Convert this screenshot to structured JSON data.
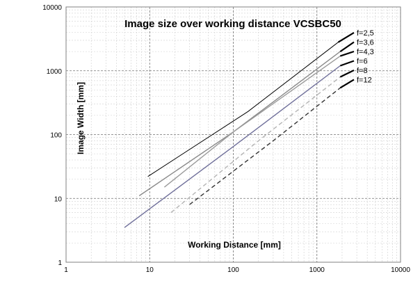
{
  "chart_data": {
    "type": "line",
    "title": "Image size over working distance VCSBC50",
    "xlabel": "Working Distance [mm]",
    "ylabel": "Image Width [mm]",
    "x_scale": "log",
    "y_scale": "log",
    "xlim": [
      1,
      10000
    ],
    "ylim": [
      1,
      10000
    ],
    "x_ticks": [
      "1",
      "10",
      "100",
      "1000",
      "10000"
    ],
    "y_ticks": [
      "1",
      "10",
      "100",
      "1000",
      "10000"
    ],
    "grid": true,
    "legend_position": "top-right",
    "series": [
      {
        "name": "f=2,5",
        "color": "#000000",
        "dash": "solid",
        "x": [
          9.5,
          150,
          1800
        ],
        "y": [
          22,
          230,
          2800
        ]
      },
      {
        "name": "f=3,6",
        "color": "#8a8a8a",
        "dash": "solid",
        "x": [
          7.5,
          100,
          1900
        ],
        "y": [
          11,
          110,
          2000
        ]
      },
      {
        "name": "f=4,3",
        "color": "#9a9a9a",
        "dash": "solid",
        "x": [
          15,
          100,
          1900
        ],
        "y": [
          15,
          110,
          1700
        ]
      },
      {
        "name": "f=6",
        "color": "#6f6f9a",
        "dash": "solid",
        "x": [
          5,
          100,
          1900
        ],
        "y": [
          3.5,
          65,
          1200
        ]
      },
      {
        "name": "f=8",
        "color": "#b4b4b4",
        "dash": "dashed",
        "x": [
          18,
          200,
          1900
        ],
        "y": [
          6,
          80,
          800
        ]
      },
      {
        "name": "f=12",
        "color": "#333333",
        "dash": "dashed",
        "x": [
          30,
          300,
          1900
        ],
        "y": [
          8,
          80,
          540
        ]
      }
    ]
  }
}
